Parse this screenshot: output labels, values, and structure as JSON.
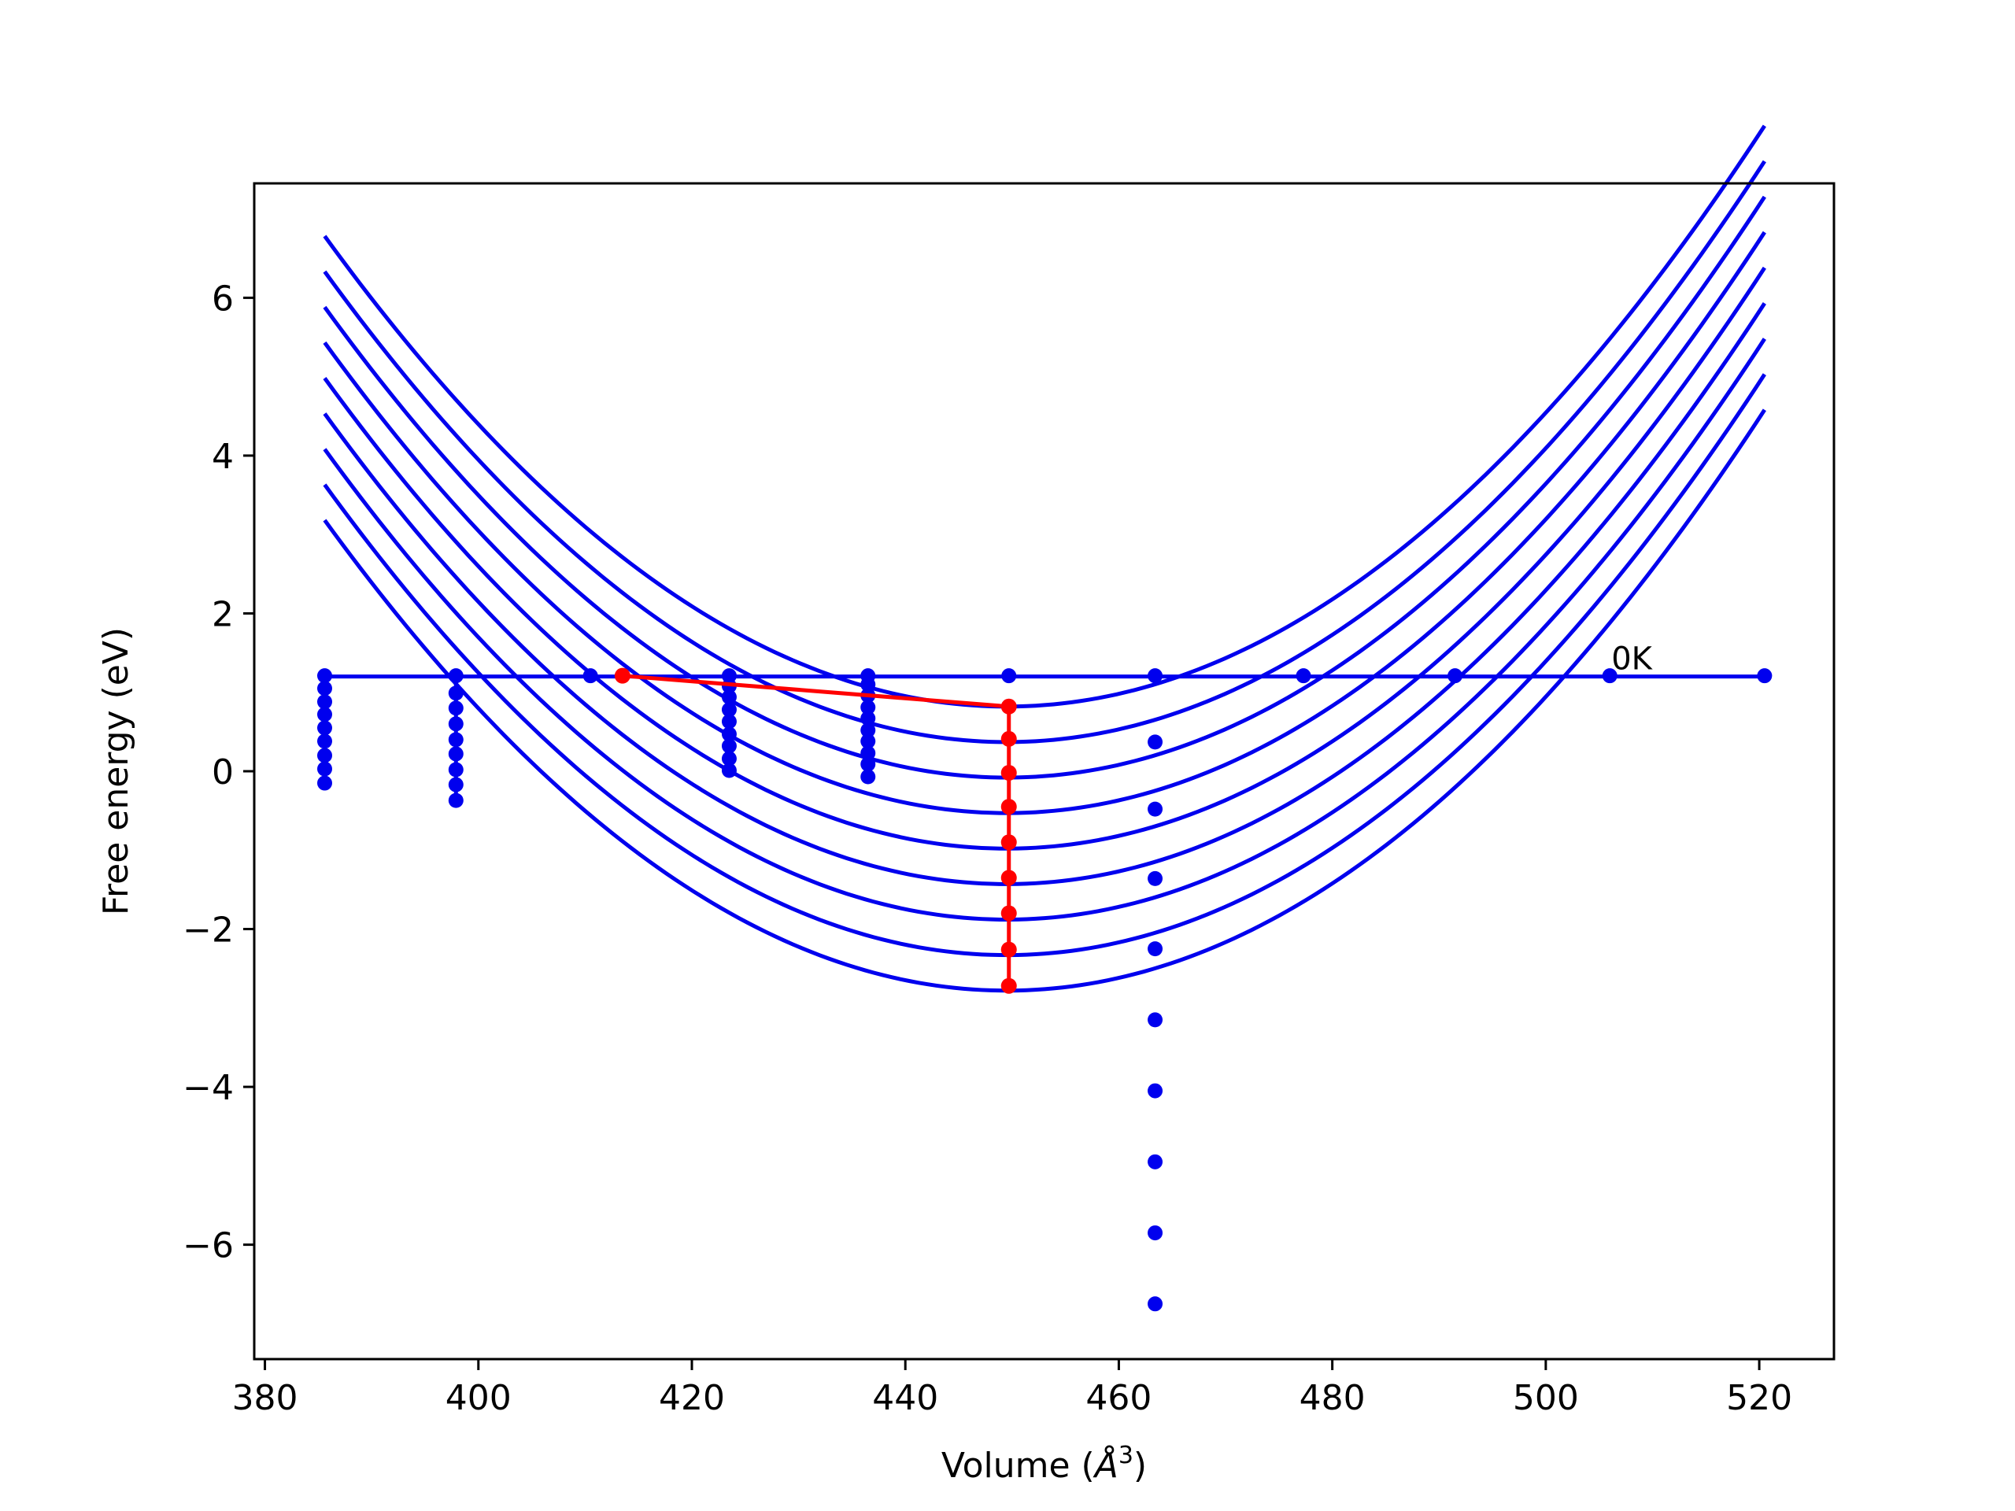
{
  "chart_data": {
    "type": "line",
    "title": "",
    "xlabel": "Volume (",
    "xlabel_symbol": "Å",
    "xlabel_sup": "3",
    "xlabel_close": ")",
    "ylabel": "Free energy (eV)",
    "xlim": [
      379,
      527
    ],
    "ylim": [
      -7.45,
      7.45
    ],
    "x_ticks": [
      380,
      400,
      420,
      440,
      460,
      480,
      500,
      520
    ],
    "y_ticks": [
      -6,
      -4,
      -2,
      0,
      2,
      4,
      6
    ],
    "y_tick_labels": [
      "−6",
      "−4",
      "−2",
      "0",
      "2",
      "4",
      "6"
    ],
    "grid": false,
    "colors": {
      "fit_curves": "#0000ee",
      "equilibrium": "#ff0000",
      "points": "#0000ee"
    },
    "fit_curves": {
      "x_range": [
        385.6,
        520.5
      ],
      "vertex_x": 449.5,
      "curvature": 0.00146,
      "minima": [
        0.82,
        0.37,
        -0.08,
        -0.53,
        -0.98,
        -1.43,
        -1.88,
        -2.33,
        -2.78
      ]
    },
    "zero_kelvin_line": {
      "y": 1.2,
      "x_range": [
        385.6,
        520.5
      ]
    },
    "points_series": [
      {
        "x": 385.6,
        "y": [
          1.21,
          1.05,
          0.88,
          0.72,
          0.55,
          0.38,
          0.2,
          0.03,
          -0.15
        ]
      },
      {
        "x": 397.9,
        "y": [
          1.21,
          0.99,
          0.8,
          0.6,
          0.4,
          0.22,
          0.02,
          -0.17,
          -0.37
        ]
      },
      {
        "x": 410.5,
        "y": [
          1.21
        ]
      },
      {
        "x": 423.5,
        "y": [
          1.21,
          1.08,
          0.94,
          0.78,
          0.63,
          0.47,
          0.32,
          0.16,
          0.01
        ]
      },
      {
        "x": 436.5,
        "y": [
          1.21,
          1.1,
          0.96,
          0.81,
          0.67,
          0.52,
          0.38,
          0.23,
          0.09,
          -0.07
        ]
      },
      {
        "x": 449.7,
        "y": [
          1.21
        ]
      },
      {
        "x": 463.4,
        "y": [
          1.21,
          0.37,
          -0.48,
          -1.36,
          -2.25,
          -3.15,
          -4.05,
          -4.95,
          -5.85,
          -6.75
        ]
      },
      {
        "x": 477.3,
        "y": [
          1.21
        ]
      },
      {
        "x": 491.5,
        "y": [
          1.21
        ]
      },
      {
        "x": 506.0,
        "y": [
          1.21
        ]
      },
      {
        "x": 520.5,
        "y": [
          1.21
        ]
      }
    ],
    "equilibrium_path": {
      "x": [
        413.5,
        449.7,
        449.7,
        449.7,
        449.7,
        449.7,
        449.7,
        449.7,
        449.7,
        449.7
      ],
      "y": [
        1.21,
        0.82,
        0.41,
        -0.02,
        -0.45,
        -0.9,
        -1.35,
        -1.8,
        -2.26,
        -2.72
      ]
    },
    "annotations": [
      {
        "text": "0K",
        "x": 506.0,
        "y": 1.21
      }
    ]
  }
}
